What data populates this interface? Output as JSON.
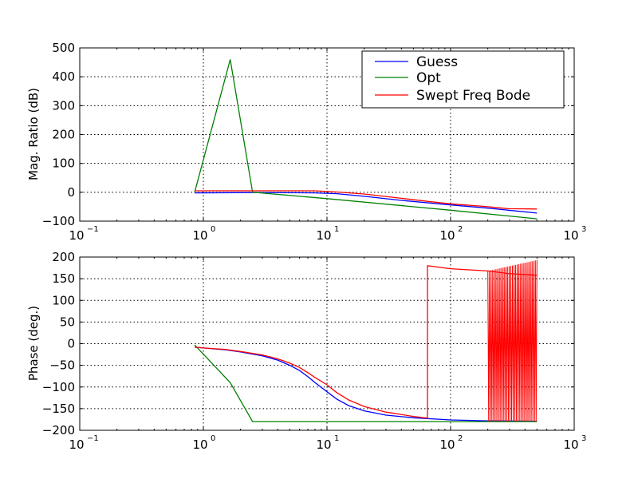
{
  "colors": {
    "Guess": "#0000ff",
    "Opt": "#008000",
    "Swept Freq Bode": "#ff0000"
  },
  "chart_data": [
    {
      "type": "line",
      "panel": "magnitude",
      "ylabel": "Mag. Ratio (dB)",
      "xlabel": "",
      "xscale": "log",
      "xlim": [
        0.1,
        1000
      ],
      "ylim": [
        -100,
        500
      ],
      "yticks": [
        -100,
        0,
        100,
        200,
        300,
        400,
        500
      ],
      "xticks": [
        {
          "base": "10",
          "exp": "-1",
          "value": 0.1
        },
        {
          "base": "10",
          "exp": "0",
          "value": 1
        },
        {
          "base": "10",
          "exp": "1",
          "value": 10
        },
        {
          "base": "10",
          "exp": "2",
          "value": 100
        },
        {
          "base": "10",
          "exp": "3",
          "value": 1000
        }
      ],
      "grid": true,
      "legend": {
        "placement": "top-right",
        "entries": [
          "Guess",
          "Opt",
          "Swept Freq Bode"
        ]
      },
      "series": [
        {
          "name": "Guess",
          "x": [
            0.85,
            2.5,
            8,
            12,
            20,
            40,
            100,
            200,
            500
          ],
          "y": [
            -2,
            -1,
            -2,
            -5,
            -14,
            -28,
            -44,
            -55,
            -72
          ]
        },
        {
          "name": "Opt",
          "x": [
            0.85,
            1.65,
            2.5,
            10,
            100,
            500
          ],
          "y": [
            0,
            460,
            0,
            -22,
            -62,
            -92
          ]
        },
        {
          "name": "Swept Freq Bode",
          "x": [
            0.85,
            2.5,
            8,
            12,
            20,
            40,
            70,
            100,
            200,
            290,
            500
          ],
          "y": [
            5,
            5,
            5,
            1,
            -6,
            -21,
            -33,
            -40,
            -50,
            -57,
            -58
          ]
        }
      ]
    },
    {
      "type": "line",
      "panel": "phase",
      "ylabel": "Phase (deg.)",
      "xlabel": "",
      "xscale": "log",
      "xlim": [
        0.1,
        1000
      ],
      "ylim": [
        -200,
        200
      ],
      "yticks": [
        -200,
        -150,
        -100,
        -50,
        0,
        50,
        100,
        150,
        200
      ],
      "xticks": [
        {
          "base": "10",
          "exp": "-1",
          "value": 0.1
        },
        {
          "base": "10",
          "exp": "0",
          "value": 1
        },
        {
          "base": "10",
          "exp": "1",
          "value": 10
        },
        {
          "base": "10",
          "exp": "2",
          "value": 100
        },
        {
          "base": "10",
          "exp": "3",
          "value": 1000
        }
      ],
      "grid": true,
      "series": [
        {
          "name": "Guess",
          "x": [
            0.85,
            1,
            1.5,
            2,
            3,
            4,
            5,
            6,
            7,
            8,
            10,
            12,
            15,
            20,
            30,
            50,
            100,
            200,
            500
          ],
          "y": [
            -8,
            -10,
            -14,
            -19,
            -28,
            -38,
            -50,
            -62,
            -76,
            -90,
            -111,
            -128,
            -143,
            -155,
            -165,
            -171,
            -176,
            -178,
            -179
          ]
        },
        {
          "name": "Opt",
          "x": [
            0.85,
            1.65,
            2.5,
            500
          ],
          "y": [
            -3,
            -90,
            -180,
            -180
          ]
        },
        {
          "name": "Swept Freq Bode",
          "x": [
            0.85,
            1,
            1.5,
            2,
            3,
            4,
            5,
            6,
            7,
            8,
            10,
            12,
            15,
            20,
            30,
            50,
            65,
            65,
            100,
            200,
            290,
            500
          ],
          "y": [
            -8,
            -10,
            -13,
            -18,
            -26,
            -35,
            -45,
            -55,
            -67,
            -78,
            -95,
            -113,
            -130,
            -145,
            -158,
            -168,
            -172,
            180,
            173,
            168,
            162,
            158
          ]
        }
      ]
    }
  ]
}
